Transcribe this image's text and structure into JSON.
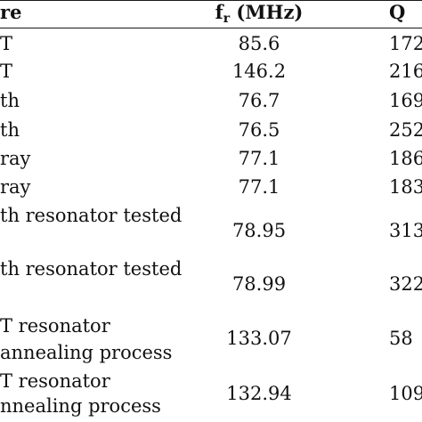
{
  "header": {
    "structure": "re",
    "fr_main": "f",
    "fr_sub": "r",
    "fr_unit": " (MHz)",
    "q": "Q"
  },
  "rows": [
    {
      "structure": [
        "T"
      ],
      "fr": "85.6",
      "q": "172"
    },
    {
      "structure": [
        "T"
      ],
      "fr": "146.2",
      "q": "216"
    },
    {
      "structure": [
        "th"
      ],
      "fr": "76.7",
      "q": "169"
    },
    {
      "structure": [
        "th"
      ],
      "fr": "76.5",
      "q": "252"
    },
    {
      "structure": [
        "ray"
      ],
      "fr": "77.1",
      "q": "186"
    },
    {
      "structure": [
        "ray"
      ],
      "fr": "77.1",
      "q": "183"
    },
    {
      "structure": [
        "th resonator tested",
        ""
      ],
      "fr": "78.95",
      "q": "313"
    },
    {
      "structure": [
        "th resonator tested",
        ""
      ],
      "fr": "78.99",
      "q": "322"
    },
    {
      "structure": [
        "T resonator",
        " annealing process"
      ],
      "fr": "133.07",
      "q": "58"
    },
    {
      "structure": [
        "T resonator",
        "nnealing process"
      ],
      "fr": "132.94",
      "q": "109"
    }
  ]
}
